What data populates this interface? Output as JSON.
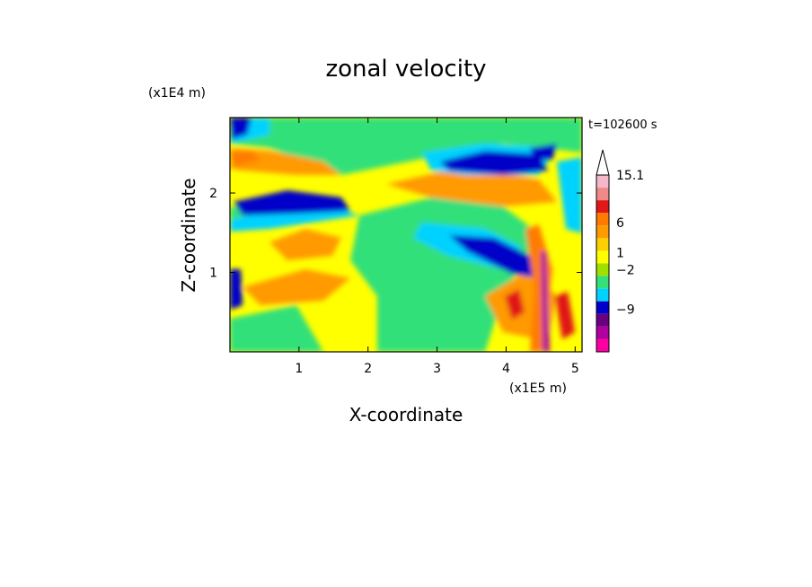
{
  "chart_data": {
    "type": "heatmap",
    "title": "zonal velocity",
    "xlabel": "X-coordinate",
    "ylabel": "Z-coordinate",
    "x_multiplier": "(x1E5 m)",
    "y_multiplier": "(x1E4 m)",
    "time_label": "t=102600 s",
    "xlim": [
      0.0,
      5.1
    ],
    "ylim": [
      0.0,
      2.95
    ],
    "x_ticks": [
      "1",
      "2",
      "3",
      "4",
      "5"
    ],
    "y_ticks": [
      "1",
      "2"
    ],
    "colorbar": {
      "labels": [
        "15.1",
        "6",
        "1",
        "−2",
        "−9"
      ],
      "colors": [
        "#f5b8c8",
        "#f08a8a",
        "#e01818",
        "#ff7b00",
        "#ff9a00",
        "#ffd000",
        "#ffff00",
        "#a0e000",
        "#33e07a",
        "#00d2ff",
        "#0000c8",
        "#6a0080",
        "#b000a0",
        "#ff00a0"
      ]
    }
  }
}
